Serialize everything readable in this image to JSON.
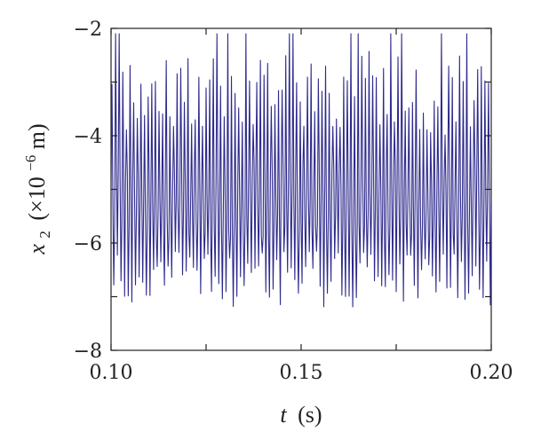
{
  "chart_data": {
    "type": "line",
    "title": "",
    "xlabel": {
      "symbol": "t",
      "unit": "(s)"
    },
    "ylabel": {
      "symbol": "x",
      "subscript": "2",
      "open": "(×10",
      "exponent": "−6",
      "unit": "m)"
    },
    "xlim": [
      0.1,
      0.2
    ],
    "ylim": [
      -8,
      -2
    ],
    "xticks": [
      0.1,
      0.125,
      0.15,
      0.175,
      0.2
    ],
    "xtick_labels": [
      "0.10",
      "",
      "0.15",
      "",
      "0.20"
    ],
    "yticks": [
      -8,
      -7,
      -6,
      -5,
      -4,
      -3,
      -2
    ],
    "ytick_labels": [
      "−8",
      "",
      "−6",
      "",
      "−4",
      "",
      "−2"
    ],
    "grid": false,
    "legend": "none",
    "series": [
      {
        "color": "#2e2a8c",
        "signal": {
          "mean": -5.2,
          "oscillation_cycles": 105,
          "min": -7.2,
          "max": -2.1,
          "typical_low": -6.6,
          "typical_high": -3.2
        }
      }
    ]
  }
}
